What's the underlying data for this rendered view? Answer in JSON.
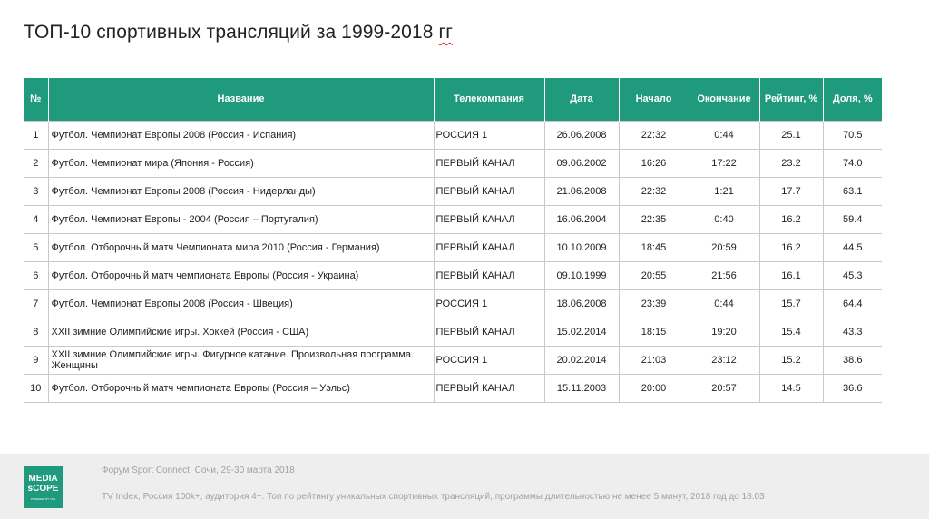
{
  "slide": {
    "title_main": "ТОП-10 спортивных трансляций за 1999-2018 ",
    "title_last": "гг"
  },
  "table": {
    "headers": [
      "№",
      "Название",
      "Телекомпания",
      "Дата",
      "Начало",
      "Окончание",
      "Рейтинг, %",
      "Доля, %"
    ],
    "header_color": "#1f9a7c",
    "rows": [
      {
        "num": "1",
        "name": "Футбол. Чемпионат Европы 2008 (Россия - Испания)",
        "channel": "РОССИЯ 1",
        "date": "26.06.2008",
        "start": "22:32",
        "end": "0:44",
        "rating": "25.1",
        "share": "70.5"
      },
      {
        "num": "2",
        "name": "Футбол. Чемпионат мира (Япония - Россия)",
        "channel": "ПЕРВЫЙ КАНАЛ",
        "date": "09.06.2002",
        "start": "16:26",
        "end": "17:22",
        "rating": "23.2",
        "share": "74.0"
      },
      {
        "num": "3",
        "name": "Футбол. Чемпионат Европы 2008 (Россия - Нидерланды)",
        "channel": "ПЕРВЫЙ КАНАЛ",
        "date": "21.06.2008",
        "start": "22:32",
        "end": "1:21",
        "rating": "17.7",
        "share": "63.1"
      },
      {
        "num": "4",
        "name": "Футбол. Чемпионат Европы - 2004 (Россия – Португалия)",
        "channel": "ПЕРВЫЙ КАНАЛ",
        "date": "16.06.2004",
        "start": "22:35",
        "end": "0:40",
        "rating": "16.2",
        "share": "59.4"
      },
      {
        "num": "5",
        "name": "Футбол. Отборочный матч Чемпионата мира 2010 (Россия - Германия)",
        "channel": "ПЕРВЫЙ КАНАЛ",
        "date": "10.10.2009",
        "start": "18:45",
        "end": "20:59",
        "rating": "16.2",
        "share": "44.5"
      },
      {
        "num": "6",
        "name": "Футбол. Отборочный матч чемпионата Европы (Россия - Украина)",
        "channel": "ПЕРВЫЙ КАНАЛ",
        "date": "09.10.1999",
        "start": "20:55",
        "end": "21:56",
        "rating": "16.1",
        "share": "45.3"
      },
      {
        "num": "7",
        "name": "Футбол. Чемпионат Европы 2008 (Россия - Швеция)",
        "channel": "РОССИЯ 1",
        "date": "18.06.2008",
        "start": "23:39",
        "end": "0:44",
        "rating": "15.7",
        "share": "64.4"
      },
      {
        "num": "8",
        "name": "XXII зимние Олимпийские игры. Хоккей (Россия - США)",
        "channel": "ПЕРВЫЙ КАНАЛ",
        "date": "15.02.2014",
        "start": "18:15",
        "end": "19:20",
        "rating": "15.4",
        "share": "43.3"
      },
      {
        "num": "9",
        "name": "XXII зимние Олимпийские игры. Фигурное катание. Произвольная программа. Женщины",
        "channel": "РОССИЯ 1",
        "date": "20.02.2014",
        "start": "21:03",
        "end": "23:12",
        "rating": "15.2",
        "share": "38.6"
      },
      {
        "num": "10",
        "name": "Футбол. Отборочный матч чемпионата Европы (Россия – Уэльс)",
        "channel": "ПЕРВЫЙ КАНАЛ",
        "date": "15.11.2003",
        "start": "20:00",
        "end": "20:57",
        "rating": "14.5",
        "share": "36.6"
      }
    ]
  },
  "footer": {
    "line1": "Форум Sport Connect, Сочи, 29-30 марта 2018",
    "line2": "TV Index, Россия 100k+, аудитория 4+. Топ по рейтингу уникальных спортивных трансляций, программы длительностью не менее 5 минут, 2018 год до 18.03",
    "logo_line1": "MEDIA",
    "logo_line2": "sCOPE",
    "logo_line3": "POWERED BY TNS",
    "logo_color": "#1f9a7c"
  }
}
